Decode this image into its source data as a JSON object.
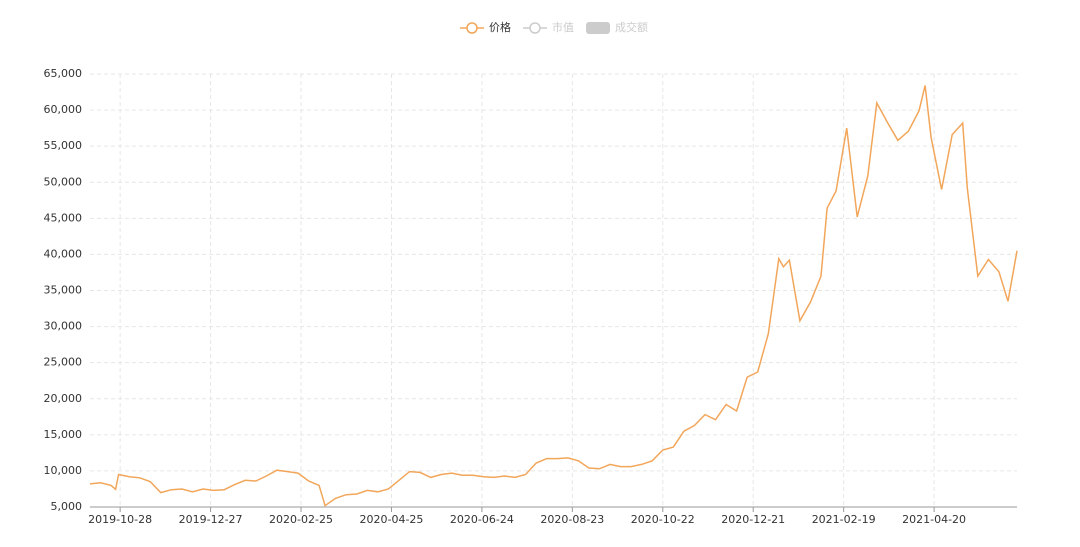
{
  "chart_data": {
    "type": "line",
    "legend": [
      {
        "name": "价格",
        "color": "#f2a65a",
        "shape": "line-circle",
        "active": true
      },
      {
        "name": "市值",
        "color": "#cccccc",
        "shape": "line-circle",
        "active": false
      },
      {
        "name": "成交额",
        "color": "#cccccc",
        "shape": "box",
        "active": false
      }
    ],
    "x": [
      "2019-10-08",
      "2019-10-15",
      "2019-10-22",
      "2019-10-25",
      "2019-10-27",
      "2019-11-03",
      "2019-11-10",
      "2019-11-17",
      "2019-11-24",
      "2019-12-01",
      "2019-12-08",
      "2019-12-15",
      "2019-12-22",
      "2019-12-29",
      "2020-01-05",
      "2020-01-12",
      "2020-01-19",
      "2020-01-26",
      "2020-02-02",
      "2020-02-09",
      "2020-02-16",
      "2020-02-23",
      "2020-03-01",
      "2020-03-08",
      "2020-03-12",
      "2020-03-19",
      "2020-03-26",
      "2020-04-02",
      "2020-04-09",
      "2020-04-16",
      "2020-04-23",
      "2020-04-30",
      "2020-05-07",
      "2020-05-14",
      "2020-05-21",
      "2020-05-28",
      "2020-06-04",
      "2020-06-11",
      "2020-06-18",
      "2020-06-25",
      "2020-07-02",
      "2020-07-09",
      "2020-07-16",
      "2020-07-23",
      "2020-07-30",
      "2020-08-06",
      "2020-08-13",
      "2020-08-20",
      "2020-08-27",
      "2020-09-03",
      "2020-09-10",
      "2020-09-17",
      "2020-09-24",
      "2020-10-01",
      "2020-10-08",
      "2020-10-15",
      "2020-10-22",
      "2020-10-29",
      "2020-11-05",
      "2020-11-12",
      "2020-11-19",
      "2020-11-26",
      "2020-12-03",
      "2020-12-10",
      "2020-12-17",
      "2020-12-24",
      "2020-12-31",
      "2021-01-07",
      "2021-01-10",
      "2021-01-14",
      "2021-01-21",
      "2021-01-28",
      "2021-02-04",
      "2021-02-08",
      "2021-02-14",
      "2021-02-21",
      "2021-02-28",
      "2021-03-07",
      "2021-03-13",
      "2021-03-20",
      "2021-03-27",
      "2021-04-03",
      "2021-04-10",
      "2021-04-14",
      "2021-04-18",
      "2021-04-25",
      "2021-05-02",
      "2021-05-09",
      "2021-05-12",
      "2021-05-19",
      "2021-05-26",
      "2021-06-02",
      "2021-06-08",
      "2021-06-14"
    ],
    "series": [
      {
        "name": "价格",
        "color": "#f2a65a",
        "values": [
          8200,
          8350,
          8000,
          7450,
          9500,
          9200,
          9050,
          8500,
          7000,
          7400,
          7500,
          7100,
          7500,
          7300,
          7400,
          8100,
          8700,
          8600,
          9300,
          10100,
          9900,
          9700,
          8600,
          8000,
          5200,
          6200,
          6700,
          6800,
          7300,
          7100,
          7500,
          8700,
          9900,
          9800,
          9100,
          9500,
          9700,
          9400,
          9400,
          9200,
          9100,
          9300,
          9100,
          9500,
          11100,
          11700,
          11700,
          11800,
          11400,
          10400,
          10300,
          10900,
          10600,
          10600,
          10900,
          11400,
          12900,
          13300,
          15500,
          16300,
          17800,
          17100,
          19200,
          18300,
          23000,
          23700,
          29000,
          39400,
          38300,
          39200,
          30800,
          33400,
          37000,
          46400,
          48800,
          57500,
          45200,
          50900,
          61000,
          58300,
          55800,
          57100,
          59900,
          63400,
          56200,
          49000,
          56600,
          58200,
          49200,
          37000,
          39300,
          37600,
          33500,
          40500
        ]
      }
    ],
    "xlim": [
      "2019-10-08",
      "2021-06-14"
    ],
    "xticks": [
      "2019-10-28",
      "2019-12-27",
      "2020-02-25",
      "2020-04-25",
      "2020-06-24",
      "2020-08-23",
      "2020-10-22",
      "2020-12-21",
      "2021-02-19",
      "2021-04-20"
    ],
    "ylim": [
      5000,
      65000
    ],
    "yticks": [
      {
        "value": 5000,
        "label": "5,000"
      },
      {
        "value": 10000,
        "label": "10,000"
      },
      {
        "value": 15000,
        "label": "15,000"
      },
      {
        "value": 20000,
        "label": "20,000"
      },
      {
        "value": 25000,
        "label": "25,000"
      },
      {
        "value": 30000,
        "label": "30,000"
      },
      {
        "value": 35000,
        "label": "35,000"
      },
      {
        "value": 40000,
        "label": "40,000"
      },
      {
        "value": 45000,
        "label": "45,000"
      },
      {
        "value": 50000,
        "label": "50,000"
      },
      {
        "value": 55000,
        "label": "55,000"
      },
      {
        "value": 60000,
        "label": "60,000"
      },
      {
        "value": 65000,
        "label": "65,000"
      }
    ],
    "grid": true
  }
}
